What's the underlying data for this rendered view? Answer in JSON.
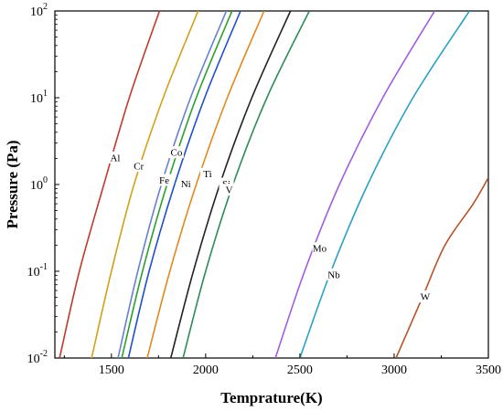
{
  "chart_data": {
    "type": "line",
    "title": "",
    "xlabel": "Temprature(K)",
    "ylabel": "Pressure (Pa)",
    "xlim": [
      1200,
      3500
    ],
    "ylim": [
      0.01,
      100
    ],
    "yscale": "log",
    "grid": false,
    "legend": "none (series labeled inline on curves)",
    "x_ticks": [
      {
        "value": 1500,
        "label": "1500"
      },
      {
        "value": 2000,
        "label": "2000"
      },
      {
        "value": 2500,
        "label": "2500"
      },
      {
        "value": 3000,
        "label": "3000"
      },
      {
        "value": 3500,
        "label": "3500"
      }
    ],
    "y_ticks": [
      {
        "value": 0.01,
        "base": "10",
        "exp": "-2"
      },
      {
        "value": 0.1,
        "base": "10",
        "exp": "-1"
      },
      {
        "value": 1,
        "base": "10",
        "exp": "0"
      },
      {
        "value": 10,
        "base": "10",
        "exp": "1"
      },
      {
        "value": 100,
        "base": "10",
        "exp": "2"
      }
    ],
    "series": [
      {
        "name": "Al",
        "color": "#c0392b",
        "points": [
          [
            1225,
            0.01
          ],
          [
            1330,
            0.1
          ],
          [
            1460,
            1
          ],
          [
            1595,
            10
          ],
          [
            1755,
            100
          ]
        ],
        "label_at": [
          1520,
          2.0
        ]
      },
      {
        "name": "Cr",
        "color": "#d4a017",
        "points": [
          [
            1395,
            0.01
          ],
          [
            1500,
            0.1
          ],
          [
            1620,
            1
          ],
          [
            1775,
            10
          ],
          [
            1960,
            100
          ]
        ],
        "label_at": [
          1645,
          1.6
        ]
      },
      {
        "name": "Fe",
        "color": "#6a7fd0",
        "points": [
          [
            1535,
            0.01
          ],
          [
            1640,
            0.1
          ],
          [
            1765,
            1
          ],
          [
            1920,
            10
          ],
          [
            2110,
            100
          ]
        ],
        "label_at": [
          1780,
          1.1
        ]
      },
      {
        "name": "Co",
        "color": "#2ca02c",
        "points": [
          [
            1555,
            0.01
          ],
          [
            1665,
            0.1
          ],
          [
            1795,
            1
          ],
          [
            1950,
            10
          ],
          [
            2140,
            100
          ]
        ],
        "label_at": [
          1845,
          2.3
        ]
      },
      {
        "name": "Ni",
        "color": "#1f4fd0",
        "points": [
          [
            1590,
            0.01
          ],
          [
            1700,
            0.1
          ],
          [
            1835,
            1
          ],
          [
            1995,
            10
          ],
          [
            2185,
            100
          ]
        ],
        "label_at": [
          1895,
          1.0
        ]
      },
      {
        "name": "Ti",
        "color": "#e08a1e",
        "points": [
          [
            1690,
            0.01
          ],
          [
            1810,
            0.1
          ],
          [
            1950,
            1
          ],
          [
            2115,
            10
          ],
          [
            2310,
            100
          ]
        ],
        "label_at": [
          2010,
          1.3
        ]
      },
      {
        "name": "Si",
        "color": "#222222",
        "points": [
          [
            1815,
            0.01
          ],
          [
            1935,
            0.1
          ],
          [
            2075,
            1
          ],
          [
            2245,
            10
          ],
          [
            2450,
            100
          ]
        ],
        "label_at": [
          2110,
          1.0
        ]
      },
      {
        "name": "V",
        "color": "#2e8b57",
        "points": [
          [
            1880,
            0.01
          ],
          [
            2000,
            0.1
          ],
          [
            2145,
            1
          ],
          [
            2325,
            10
          ],
          [
            2550,
            100
          ]
        ],
        "label_at": [
          2125,
          0.85
        ]
      },
      {
        "name": "Mo",
        "color": "#a15ee0",
        "points": [
          [
            2370,
            0.01
          ],
          [
            2525,
            0.1
          ],
          [
            2710,
            1
          ],
          [
            2940,
            10
          ],
          [
            3215,
            100
          ]
        ],
        "label_at": [
          2605,
          0.18
        ]
      },
      {
        "name": "Nb",
        "color": "#2aa0c6",
        "points": [
          [
            2500,
            0.01
          ],
          [
            2665,
            0.1
          ],
          [
            2860,
            1
          ],
          [
            3100,
            10
          ],
          [
            3400,
            100
          ]
        ],
        "label_at": [
          2680,
          0.09
        ]
      },
      {
        "name": "W",
        "color": "#b5532a",
        "points": [
          [
            3010,
            0.01
          ],
          [
            3150,
            0.05
          ],
          [
            3270,
            0.2
          ],
          [
            3420,
            0.6
          ],
          [
            3500,
            1.2
          ]
        ],
        "label_at": [
          3165,
          0.05
        ]
      }
    ]
  }
}
